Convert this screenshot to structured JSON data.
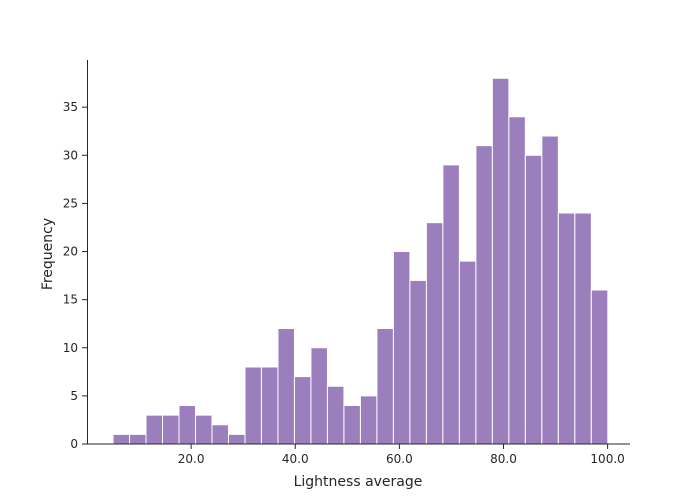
{
  "chart_data": {
    "type": "bar",
    "title": "",
    "xlabel": "Lightness average",
    "ylabel": "Frequency",
    "bar_color": "#9a7fbc",
    "edge_color": "#ffffff",
    "xlim": [
      0,
      104.3
    ],
    "ylim": [
      0,
      39.9
    ],
    "bin_width": 3.168,
    "bin_start": 5.0,
    "values": [
      1,
      1,
      3,
      3,
      4,
      3,
      2,
      1,
      8,
      8,
      12,
      7,
      10,
      6,
      4,
      5,
      12,
      20,
      17,
      23,
      29,
      19,
      31,
      38,
      34,
      30,
      32,
      24,
      24,
      16
    ],
    "x_ticks": [
      {
        "value": 20,
        "label": "20.0"
      },
      {
        "value": 40,
        "label": "40.0"
      },
      {
        "value": 60,
        "label": "60.0"
      },
      {
        "value": 80,
        "label": "80.0"
      },
      {
        "value": 100,
        "label": "100.0"
      }
    ],
    "y_ticks": [
      {
        "value": 0,
        "label": "0"
      },
      {
        "value": 5,
        "label": "5"
      },
      {
        "value": 10,
        "label": "10"
      },
      {
        "value": 15,
        "label": "15"
      },
      {
        "value": 20,
        "label": "20"
      },
      {
        "value": 25,
        "label": "25"
      },
      {
        "value": 30,
        "label": "30"
      },
      {
        "value": 35,
        "label": "35"
      }
    ],
    "grid": false,
    "spines": [
      "left",
      "bottom"
    ]
  }
}
